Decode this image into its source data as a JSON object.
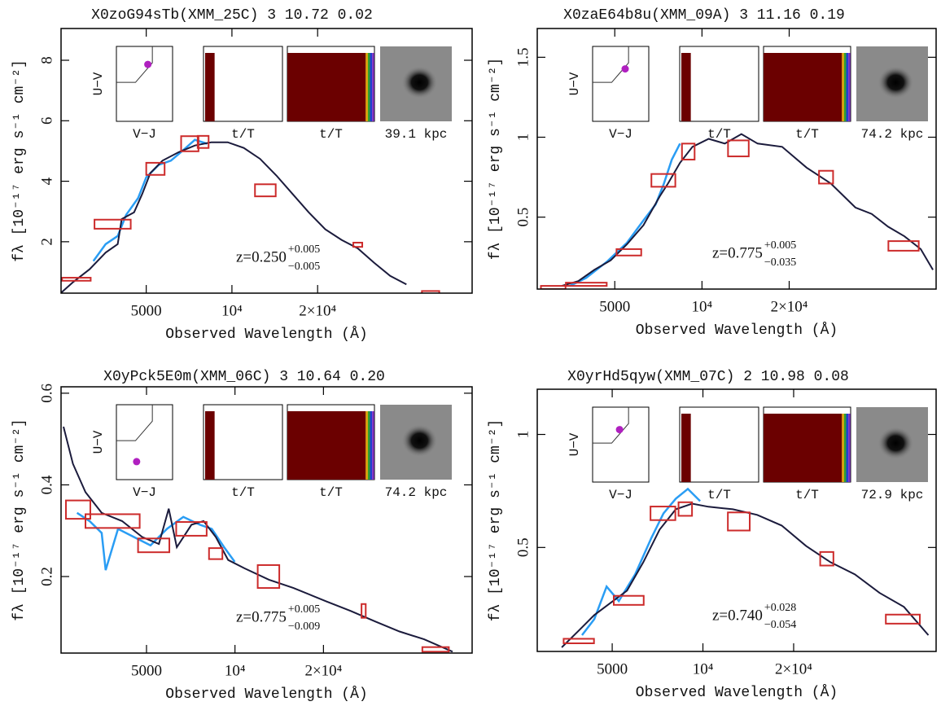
{
  "chart_data": [
    {
      "type": "line",
      "title": "X0zoG94sTb(XMM_25C) 3 10.72 0.02",
      "xlabel": "Observed Wavelength (Å)",
      "ylabel": "fλ [10⁻¹⁷ erg s⁻¹ cm⁻²]",
      "log_x": true,
      "xlim": [
        2510,
        69800
      ],
      "ylim": [
        0.3,
        9.05
      ],
      "xticks": [
        5000,
        {
          "value": 10000,
          "label": "10⁴"
        },
        {
          "value": 20000,
          "label": "2×10⁴"
        }
      ],
      "yticks": [
        2,
        4,
        6,
        8
      ],
      "x": [
        2510,
        2770,
        3160,
        3600,
        3970,
        4100,
        4530,
        4840,
        5170,
        5700,
        6500,
        7410,
        8470,
        9660,
        11010,
        12560,
        14320,
        16330,
        18620,
        21280,
        24270,
        27670,
        31550,
        35970,
        41020
      ],
      "series": [
        {
          "color": "#1b1b3c",
          "values": [
            0.31,
            0.67,
            1.09,
            1.64,
            1.92,
            2.75,
            2.97,
            3.58,
            4.27,
            4.68,
            4.96,
            5.18,
            5.29,
            5.29,
            5.1,
            4.74,
            4.19,
            3.58,
            2.97,
            2.41,
            2.06,
            1.78,
            1.31,
            0.87,
            0.59
          ]
        }
      ],
      "spectrum": {
        "color": "#2a9df4",
        "x": [
          3260,
          3600,
          3970,
          4250,
          4680,
          5000,
          5530,
          6100,
          6730,
          7410,
          8180
        ],
        "values": [
          1.36,
          1.92,
          2.19,
          2.89,
          3.44,
          4.13,
          4.54,
          4.68,
          5.02,
          5.37,
          5.24
        ]
      },
      "photometry": {
        "color": "#cc2b2b",
        "x": [
          2860,
          3850,
          5400,
          7130,
          7930,
          13150,
          27700,
          50000
        ],
        "xerr": [
          330,
          560,
          400,
          500,
          350,
          1100,
          1000,
          3500
        ],
        "values": [
          0.76,
          2.58,
          4.41,
          5.24,
          5.3,
          3.7,
          1.9,
          0.32
        ],
        "errors": [
          0.05,
          0.15,
          0.2,
          0.25,
          0.2,
          0.2,
          0.07,
          0.05
        ]
      },
      "redshift": {
        "text": "z=0.250",
        "upper": "+0.005",
        "lower": "−0.005"
      },
      "insets": {
        "uvj_ylabel": "U−V",
        "uvj_xlabel": "V−J",
        "sfh_xlabel": "t/T",
        "cum_xlabel": "t/T",
        "size_label": "39.1 kpc",
        "uvj_lim": [
          0,
          2.5
        ],
        "uvj_point": {
          "x": 1.4,
          "y": 1.9
        }
      }
    },
    {
      "type": "line",
      "title": "X0zaE64b8u(XMM_09A) 3 11.16 0.19",
      "xlabel": "Observed Wavelength (Å)",
      "ylabel": "fλ [10⁻¹⁷ erg s⁻¹ cm⁻²]",
      "log_x": true,
      "xlim": [
        2700,
        64300
      ],
      "ylim": [
        0.05,
        1.68
      ],
      "xticks": [
        5000,
        {
          "value": 10000,
          "label": "10⁴"
        },
        {
          "value": 20000,
          "label": "2×10⁴"
        }
      ],
      "yticks": [
        0.5,
        1,
        1.5
      ],
      "x": [
        3280,
        3740,
        4250,
        4840,
        5510,
        6280,
        7150,
        7630,
        8400,
        9270,
        10550,
        12000,
        13680,
        15560,
        18900,
        22950,
        27860,
        33860,
        38550,
        43890,
        50000,
        56890,
        62700
      ],
      "series": [
        {
          "color": "#1b1b3c",
          "values": [
            0.07,
            0.1,
            0.17,
            0.23,
            0.33,
            0.45,
            0.63,
            0.71,
            0.84,
            0.94,
            0.99,
            0.96,
            1.02,
            0.96,
            0.94,
            0.81,
            0.71,
            0.56,
            0.52,
            0.44,
            0.38,
            0.3,
            0.17
          ]
        }
      ],
      "spectrum": {
        "color": "#2a9df4",
        "x": [
          3500,
          3980,
          4690,
          5510,
          6280,
          6920,
          7390,
          7870,
          8400
        ],
        "values": [
          0.07,
          0.12,
          0.22,
          0.34,
          0.48,
          0.58,
          0.71,
          0.86,
          0.96
        ]
      },
      "photometry": {
        "color": "#cc2b2b",
        "x": [
          3080,
          4040,
          5620,
          7390,
          8980,
          13400,
          26850,
          50000
        ],
        "xerr": [
          300,
          650,
          550,
          700,
          450,
          1100,
          1500,
          6000
        ],
        "values": [
          0.06,
          0.08,
          0.28,
          0.73,
          0.91,
          0.93,
          0.75,
          0.32
        ],
        "errors": [
          0.01,
          0.01,
          0.02,
          0.04,
          0.05,
          0.05,
          0.04,
          0.03
        ]
      },
      "redshift": {
        "text": "z=0.775",
        "upper": "+0.005",
        "lower": "−0.035"
      },
      "insets": {
        "uvj_ylabel": "U−V",
        "uvj_xlabel": "V−J",
        "sfh_xlabel": "t/T",
        "cum_xlabel": "t/T",
        "size_label": "74.2 kpc",
        "uvj_lim": [
          0,
          2.5
        ],
        "uvj_point": {
          "x": 1.45,
          "y": 1.75
        }
      }
    },
    {
      "type": "line",
      "title": "X0yPck5E0m(XMM_06C) 3 10.64 0.20",
      "xlabel": "Observed Wavelength (Å)",
      "ylabel": "fλ [10⁻¹⁷ erg s⁻¹ cm⁻²]",
      "log_x": true,
      "xlim": [
        2560,
        64100
      ],
      "ylim": [
        0.033,
        0.614
      ],
      "xticks": [
        5000,
        {
          "value": 10000,
          "label": "10⁴"
        },
        {
          "value": 20000,
          "label": "2×10⁴"
        }
      ],
      "yticks": [
        0.2,
        0.4,
        0.6
      ],
      "x": [
        2610,
        2810,
        3100,
        3520,
        4130,
        4840,
        5510,
        5950,
        6340,
        7110,
        7820,
        8610,
        9480,
        10770,
        13050,
        15810,
        20420,
        24730,
        29990,
        36300,
        44000,
        55000
      ],
      "series": [
        {
          "color": "#1b1b3c",
          "values": [
            0.527,
            0.446,
            0.384,
            0.339,
            0.321,
            0.286,
            0.271,
            0.348,
            0.264,
            0.313,
            0.321,
            0.286,
            0.236,
            0.218,
            0.193,
            0.175,
            0.146,
            0.125,
            0.102,
            0.08,
            0.063,
            0.036
          ]
        }
      ],
      "spectrum": {
        "color": "#2a9df4",
        "x": [
          2900,
          3200,
          3520,
          3630,
          4000,
          4540,
          5160,
          5870,
          6670,
          7590,
          8340,
          9180,
          9980
        ],
        "values": [
          0.339,
          0.321,
          0.295,
          0.214,
          0.304,
          0.286,
          0.268,
          0.304,
          0.33,
          0.313,
          0.304,
          0.264,
          0.232
        ]
      },
      "photometry": {
        "color": "#cc2b2b",
        "x": [
          2940,
          3920,
          5330,
          7160,
          8610,
          13050,
          27400,
          48400
        ],
        "xerr": [
          280,
          820,
          650,
          850,
          450,
          1100,
          450,
          5000
        ],
        "values": [
          0.346,
          0.321,
          0.268,
          0.304,
          0.25,
          0.2,
          0.125,
          0.041
        ],
        "errors": [
          0.02,
          0.015,
          0.015,
          0.015,
          0.012,
          0.025,
          0.015,
          0.005
        ]
      },
      "redshift": {
        "text": "z=0.775",
        "upper": "+0.005",
        "lower": "−0.009"
      },
      "insets": {
        "uvj_ylabel": "U−V",
        "uvj_xlabel": "V−J",
        "sfh_xlabel": "t/T",
        "cum_xlabel": "t/T",
        "size_label": "74.2 kpc",
        "uvj_lim": [
          0,
          2.5
        ],
        "uvj_point": {
          "x": 0.9,
          "y": 0.6
        }
      }
    },
    {
      "type": "line",
      "title": "X0yrHd5qyw(XMM_07C) 2 10.98 0.08",
      "xlabel": "Observed Wavelength (Å)",
      "ylabel": "fλ [10⁻¹⁷ erg s⁻¹ cm⁻²]",
      "log_x": true,
      "xlim": [
        2820,
        59400
      ],
      "ylim": [
        0.04,
        1.2
      ],
      "xticks": [
        5000,
        {
          "value": 10000,
          "label": "10⁴"
        },
        {
          "value": 20000,
          "label": "2×10⁴"
        }
      ],
      "yticks": [
        0.5,
        1
      ],
      "x": [
        3400,
        3850,
        4360,
        4940,
        5600,
        6340,
        7180,
        8130,
        9210,
        10430,
        12570,
        15140,
        18250,
        21990,
        26500,
        31930,
        38550,
        46450,
        55980
      ],
      "series": [
        {
          "color": "#1b1b3c",
          "values": [
            0.058,
            0.129,
            0.201,
            0.255,
            0.309,
            0.435,
            0.579,
            0.669,
            0.694,
            0.68,
            0.669,
            0.644,
            0.597,
            0.507,
            0.435,
            0.381,
            0.299,
            0.237,
            0.112
          ]
        }
      ],
      "spectrum": {
        "color": "#2a9df4",
        "x": [
          3970,
          4360,
          4790,
          5260,
          5960,
          6750,
          7400,
          8130,
          8910,
          9790
        ],
        "values": [
          0.112,
          0.183,
          0.327,
          0.263,
          0.381,
          0.543,
          0.651,
          0.716,
          0.759,
          0.705
        ]
      },
      "photometry": {
        "color": "#cc2b2b",
        "x": [
          3900,
          5710,
          7400,
          8750,
          13200,
          25800,
          46450
        ],
        "xerr": [
          450,
          650,
          700,
          450,
          1100,
          1300,
          6000
        ],
        "values": [
          0.086,
          0.266,
          0.651,
          0.67,
          0.615,
          0.45,
          0.183
        ],
        "errors": [
          0.01,
          0.02,
          0.03,
          0.03,
          0.04,
          0.03,
          0.02
        ]
      },
      "redshift": {
        "text": "z=0.740",
        "upper": "+0.028",
        "lower": "−0.054"
      },
      "insets": {
        "uvj_ylabel": "U−V",
        "uvj_xlabel": "V−J",
        "sfh_xlabel": "t/T",
        "cum_xlabel": "t/T",
        "size_label": "72.9 kpc",
        "uvj_lim": [
          0,
          2.5
        ],
        "uvj_point": {
          "x": 1.2,
          "y": 1.75
        }
      }
    }
  ]
}
